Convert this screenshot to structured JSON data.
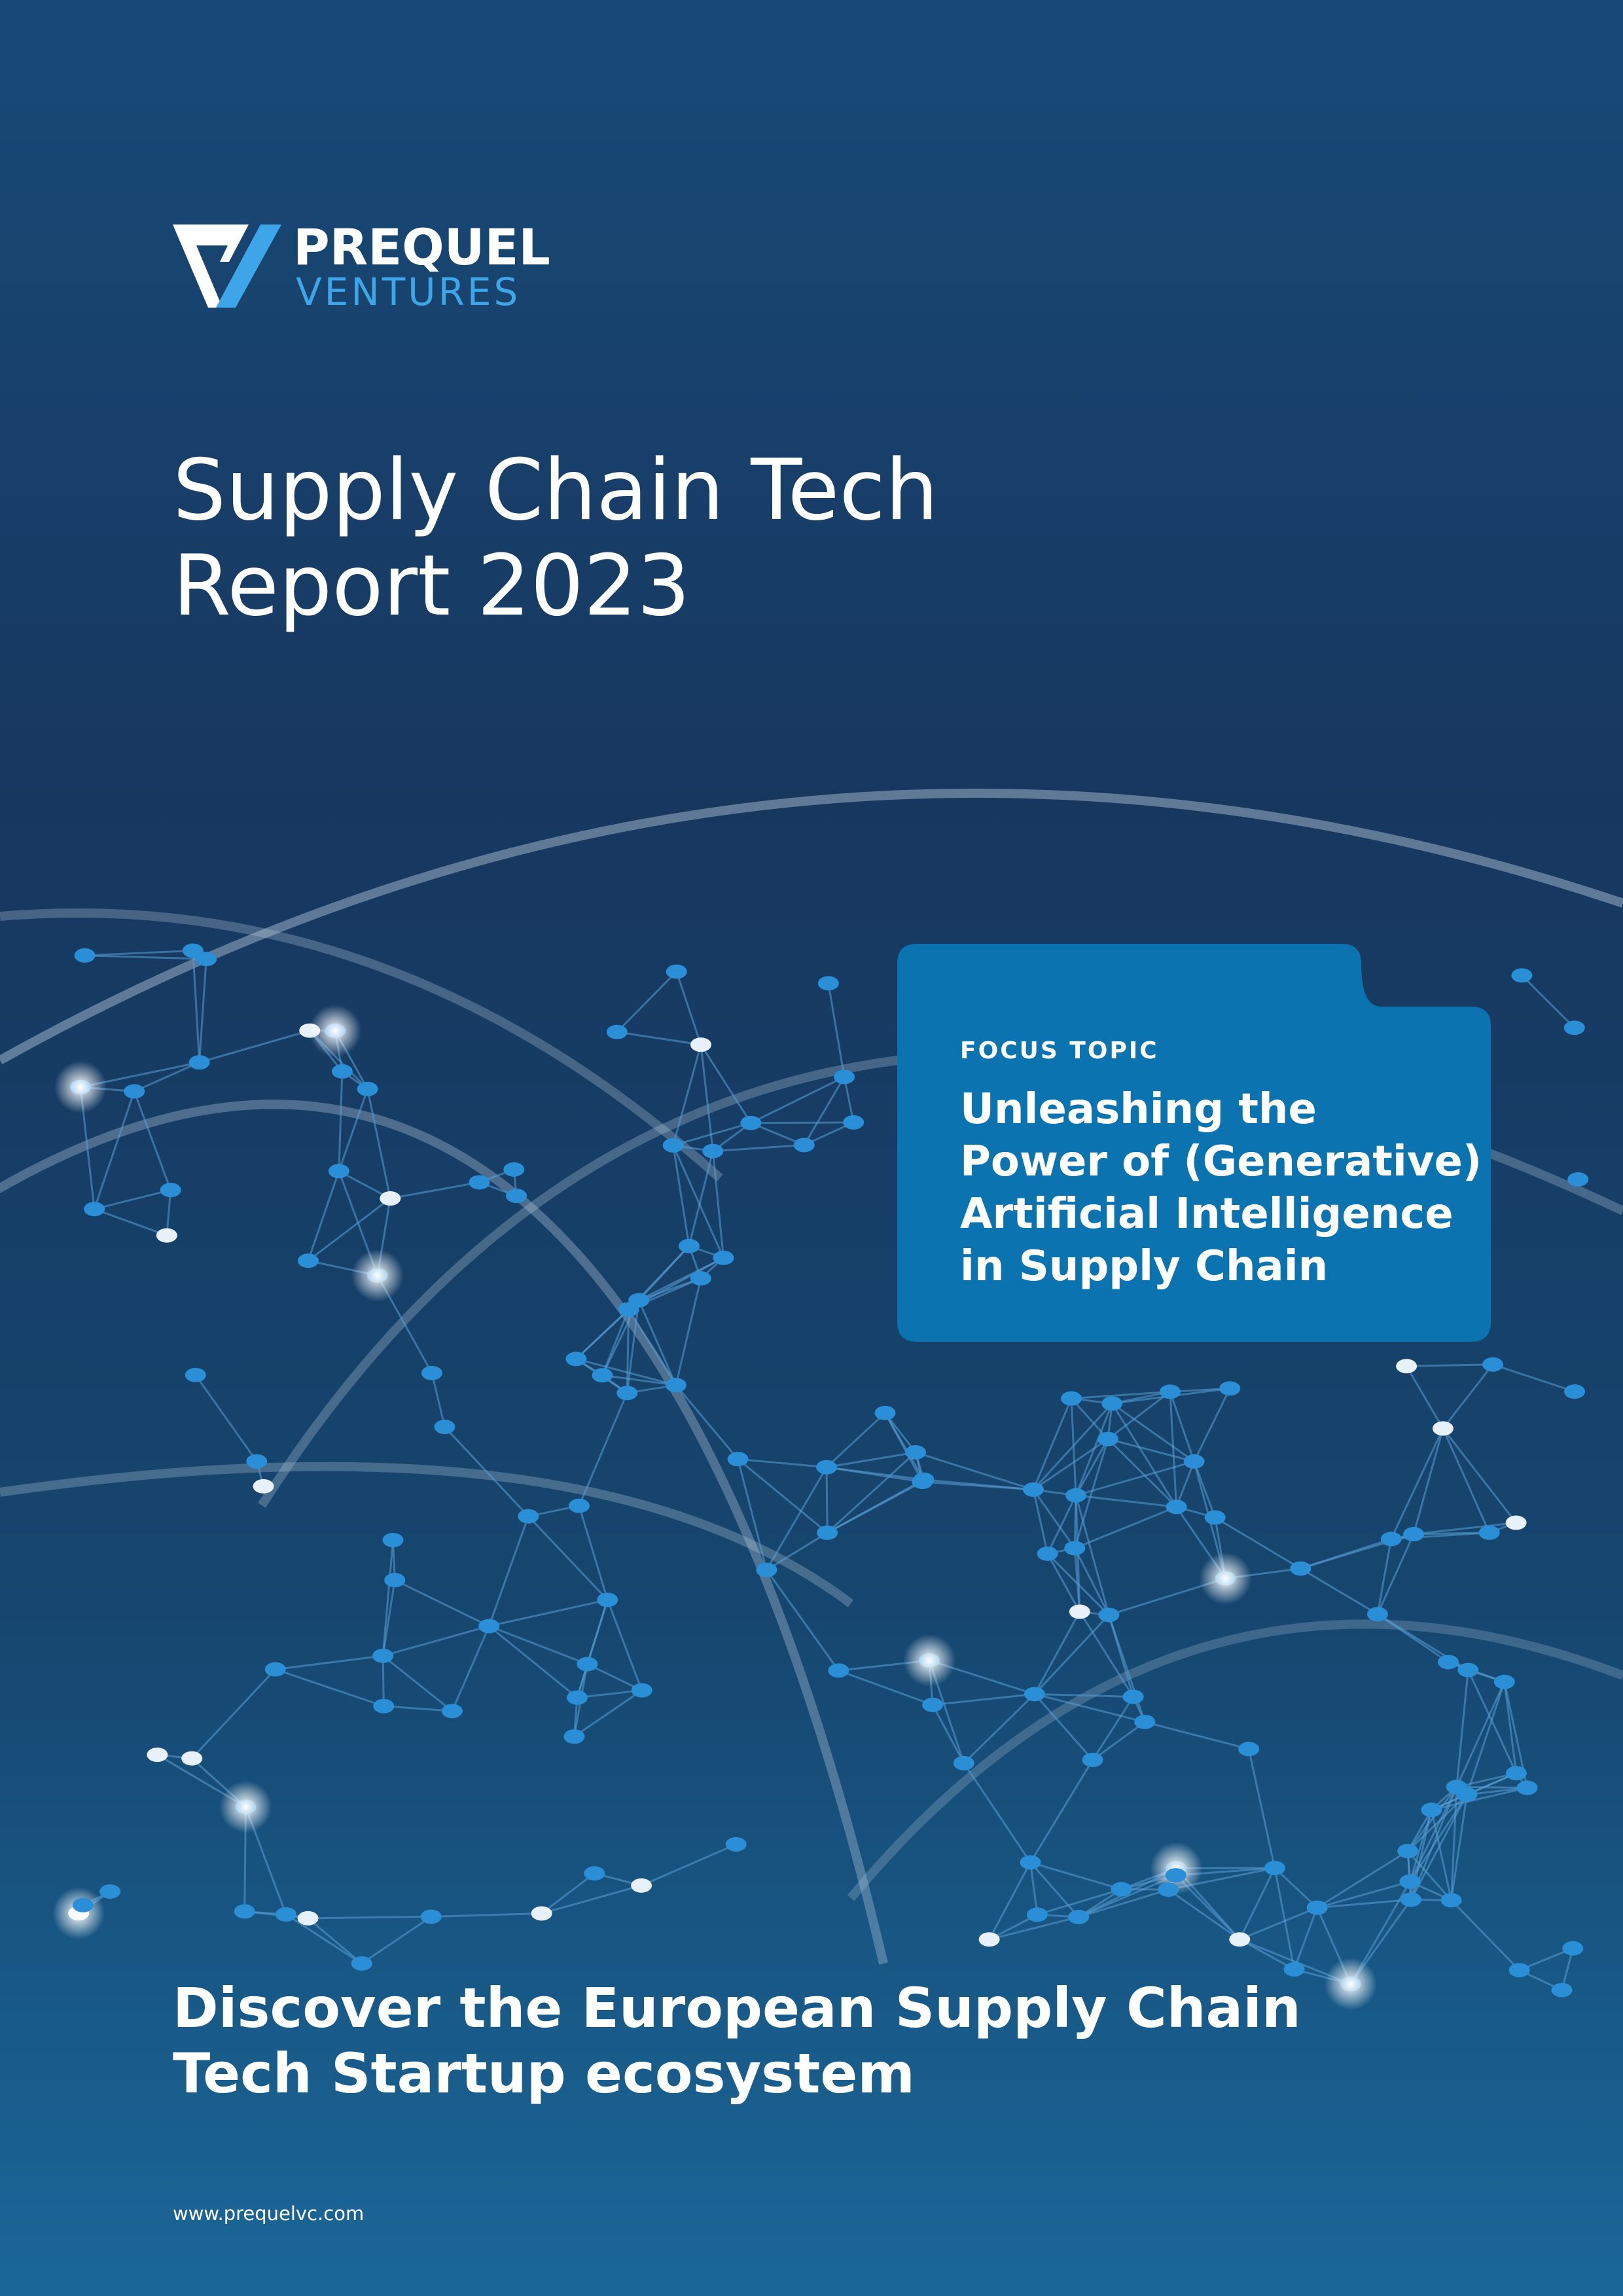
{
  "logo": {
    "name": "PREQUEL",
    "subname": "VENTURES"
  },
  "title": {
    "lines": [
      "Supply Chain Tech",
      "Report 2023"
    ]
  },
  "focus": {
    "label": "FOCUS TOPIC",
    "lines": [
      "Unleashing the",
      "Power of (Generative)",
      "Artificial Intelligence",
      "in Supply Chain"
    ]
  },
  "tagline": {
    "lines": [
      "Discover the European Supply Chain",
      "Tech Startup ecosystem"
    ]
  },
  "footer": {
    "url": "www.prequelvc.com"
  }
}
